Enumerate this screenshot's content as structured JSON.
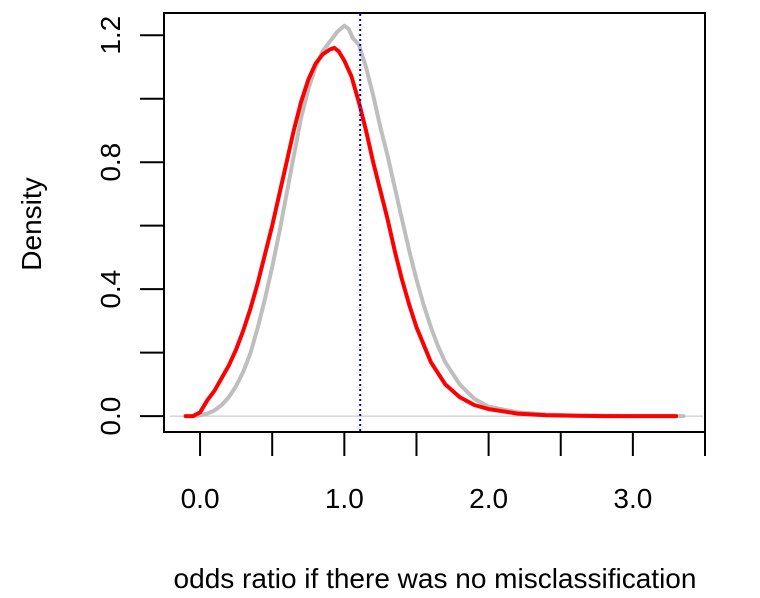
{
  "chart_data": {
    "type": "line",
    "title": "",
    "xlabel": "odds ratio if there was no misclassification",
    "ylabel": "Density",
    "xlim": [
      -0.25,
      3.5
    ],
    "ylim": [
      -0.05,
      1.27
    ],
    "x_ticks": [
      0,
      0.5,
      1,
      1.5,
      2,
      2.5,
      3,
      3.5
    ],
    "x_tick_labels": [
      {
        "value": 0,
        "label": "0.0"
      },
      {
        "value": 1,
        "label": "1.0"
      },
      {
        "value": 2,
        "label": "2.0"
      },
      {
        "value": 3,
        "label": "3.0"
      }
    ],
    "y_ticks": [
      0,
      0.2,
      0.4,
      0.6,
      0.8,
      1.0,
      1.2
    ],
    "y_tick_labels": [
      {
        "value": 0,
        "label": "0.0"
      },
      {
        "value": 0.4,
        "label": "0.4"
      },
      {
        "value": 0.8,
        "label": "0.8"
      },
      {
        "value": 1.2,
        "label": "1.2"
      }
    ],
    "baseline": {
      "y": 0,
      "color": "#cccccc"
    },
    "vline": {
      "x": 1.11,
      "color": "#0000cc",
      "style": "dotted"
    },
    "series": [
      {
        "name": "gray-density",
        "color": "#bebebe",
        "x": [
          -0.05,
          0.0,
          0.05,
          0.1,
          0.15,
          0.2,
          0.25,
          0.3,
          0.35,
          0.4,
          0.45,
          0.5,
          0.55,
          0.6,
          0.65,
          0.7,
          0.75,
          0.8,
          0.85,
          0.9,
          0.95,
          1.0,
          1.03,
          1.06,
          1.1,
          1.15,
          1.2,
          1.25,
          1.3,
          1.35,
          1.4,
          1.45,
          1.5,
          1.55,
          1.6,
          1.65,
          1.7,
          1.8,
          1.9,
          2.0,
          2.2,
          2.4,
          2.6,
          2.8,
          3.0,
          3.2,
          3.35
        ],
        "y": [
          0.0,
          0.002,
          0.008,
          0.018,
          0.035,
          0.06,
          0.095,
          0.14,
          0.2,
          0.28,
          0.37,
          0.47,
          0.58,
          0.7,
          0.82,
          0.94,
          1.03,
          1.1,
          1.15,
          1.18,
          1.21,
          1.23,
          1.22,
          1.19,
          1.17,
          1.1,
          1.01,
          0.91,
          0.82,
          0.72,
          0.62,
          0.52,
          0.43,
          0.35,
          0.28,
          0.22,
          0.17,
          0.1,
          0.055,
          0.03,
          0.012,
          0.005,
          0.002,
          0.001,
          0.0,
          0.0,
          0.0
        ]
      },
      {
        "name": "red-density",
        "color": "#ff0000",
        "x": [
          -0.1,
          -0.05,
          0.0,
          0.05,
          0.1,
          0.15,
          0.2,
          0.25,
          0.3,
          0.35,
          0.4,
          0.45,
          0.5,
          0.55,
          0.6,
          0.65,
          0.7,
          0.75,
          0.8,
          0.85,
          0.9,
          0.93,
          0.96,
          1.0,
          1.05,
          1.1,
          1.15,
          1.2,
          1.25,
          1.3,
          1.35,
          1.4,
          1.45,
          1.5,
          1.6,
          1.7,
          1.8,
          1.9,
          2.0,
          2.2,
          2.4,
          2.6,
          2.8,
          3.0,
          3.2,
          3.3
        ],
        "y": [
          0.0,
          0.0,
          0.012,
          0.05,
          0.08,
          0.12,
          0.16,
          0.21,
          0.27,
          0.34,
          0.42,
          0.51,
          0.6,
          0.7,
          0.8,
          0.9,
          0.99,
          1.06,
          1.11,
          1.14,
          1.155,
          1.16,
          1.15,
          1.12,
          1.07,
          0.99,
          0.9,
          0.8,
          0.71,
          0.62,
          0.52,
          0.43,
          0.35,
          0.28,
          0.17,
          0.1,
          0.06,
          0.035,
          0.022,
          0.008,
          0.003,
          0.001,
          0.0,
          0.0,
          0.0,
          0.0
        ]
      }
    ]
  }
}
